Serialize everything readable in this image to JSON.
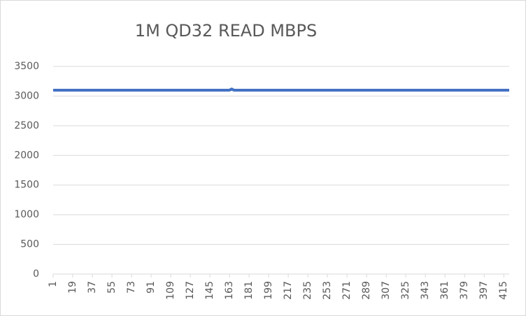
{
  "chart_data": {
    "type": "line",
    "title": "1M QD32 READ MBPS",
    "x": [
      1,
      19,
      37,
      55,
      73,
      91,
      109,
      127,
      145,
      163,
      165,
      167,
      181,
      199,
      217,
      235,
      253,
      271,
      289,
      307,
      325,
      343,
      361,
      379,
      397,
      415,
      420
    ],
    "series": [
      {
        "name": "READ MBPS",
        "color": "#4472c4",
        "values": [
          3100,
          3100,
          3100,
          3100,
          3100,
          3100,
          3100,
          3100,
          3100,
          3100,
          3120,
          3100,
          3100,
          3100,
          3100,
          3100,
          3100,
          3100,
          3100,
          3100,
          3100,
          3100,
          3100,
          3100,
          3100,
          3100,
          3100
        ]
      }
    ],
    "xlim": [
      1,
      420
    ],
    "xticks": [
      1,
      19,
      37,
      55,
      73,
      91,
      109,
      127,
      145,
      163,
      181,
      199,
      217,
      235,
      253,
      271,
      289,
      307,
      325,
      343,
      361,
      379,
      397,
      415
    ],
    "ylim": [
      0,
      3500
    ],
    "yticks": [
      0,
      500,
      1000,
      1500,
      2000,
      2500,
      3000,
      3500
    ],
    "grid": true
  }
}
